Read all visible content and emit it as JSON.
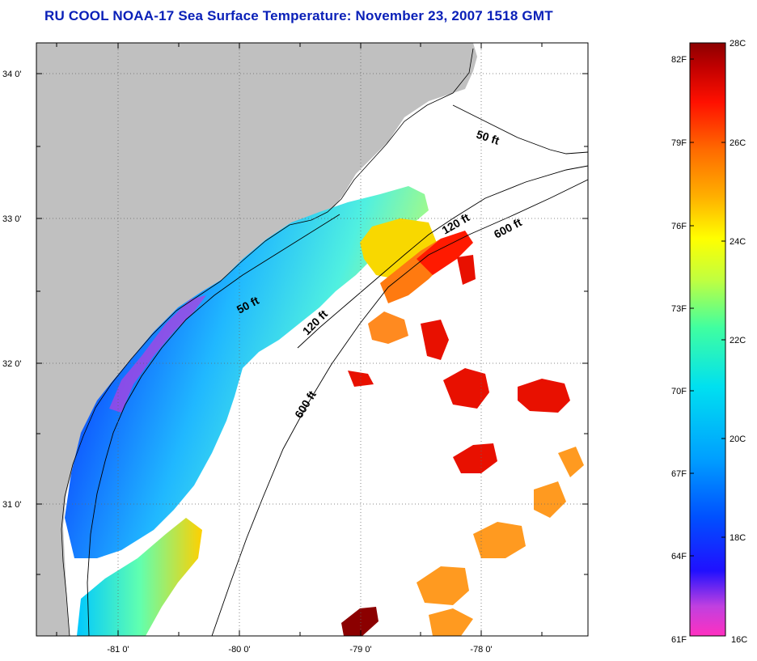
{
  "title": "RU COOL  NOAA-17  Sea Surface Temperature:  November 23, 2007 1518 GMT",
  "map": {
    "lat_labels": [
      "34 0'",
      "33 0'",
      "32 0'",
      "31 0'"
    ],
    "lon_labels": [
      "-81 0'",
      "-80 0'",
      "-79 0'",
      "-78 0'"
    ],
    "contours": [
      "50 ft",
      "50 ft",
      "120 ft",
      "120 ft",
      "600 ft",
      "600 ft"
    ],
    "land_color": "#c0c0c0",
    "missing_color": "#ffffff"
  },
  "colorbar": {
    "fahrenheit": [
      "82F",
      "79F",
      "76F",
      "73F",
      "70F",
      "67F",
      "64F",
      "61F"
    ],
    "celsius": [
      "28C",
      "26C",
      "24C",
      "22C",
      "20C",
      "18C",
      "16C"
    ],
    "range_c": [
      16,
      28
    ],
    "colors": [
      "#ff30c0",
      "#c040e0",
      "#2010ff",
      "#0050ff",
      "#00a0ff",
      "#00e0f0",
      "#40ffa0",
      "#c0ff40",
      "#ffff00",
      "#ffb000",
      "#ff6a00",
      "#ff1000",
      "#c00000",
      "#8b0000"
    ]
  }
}
